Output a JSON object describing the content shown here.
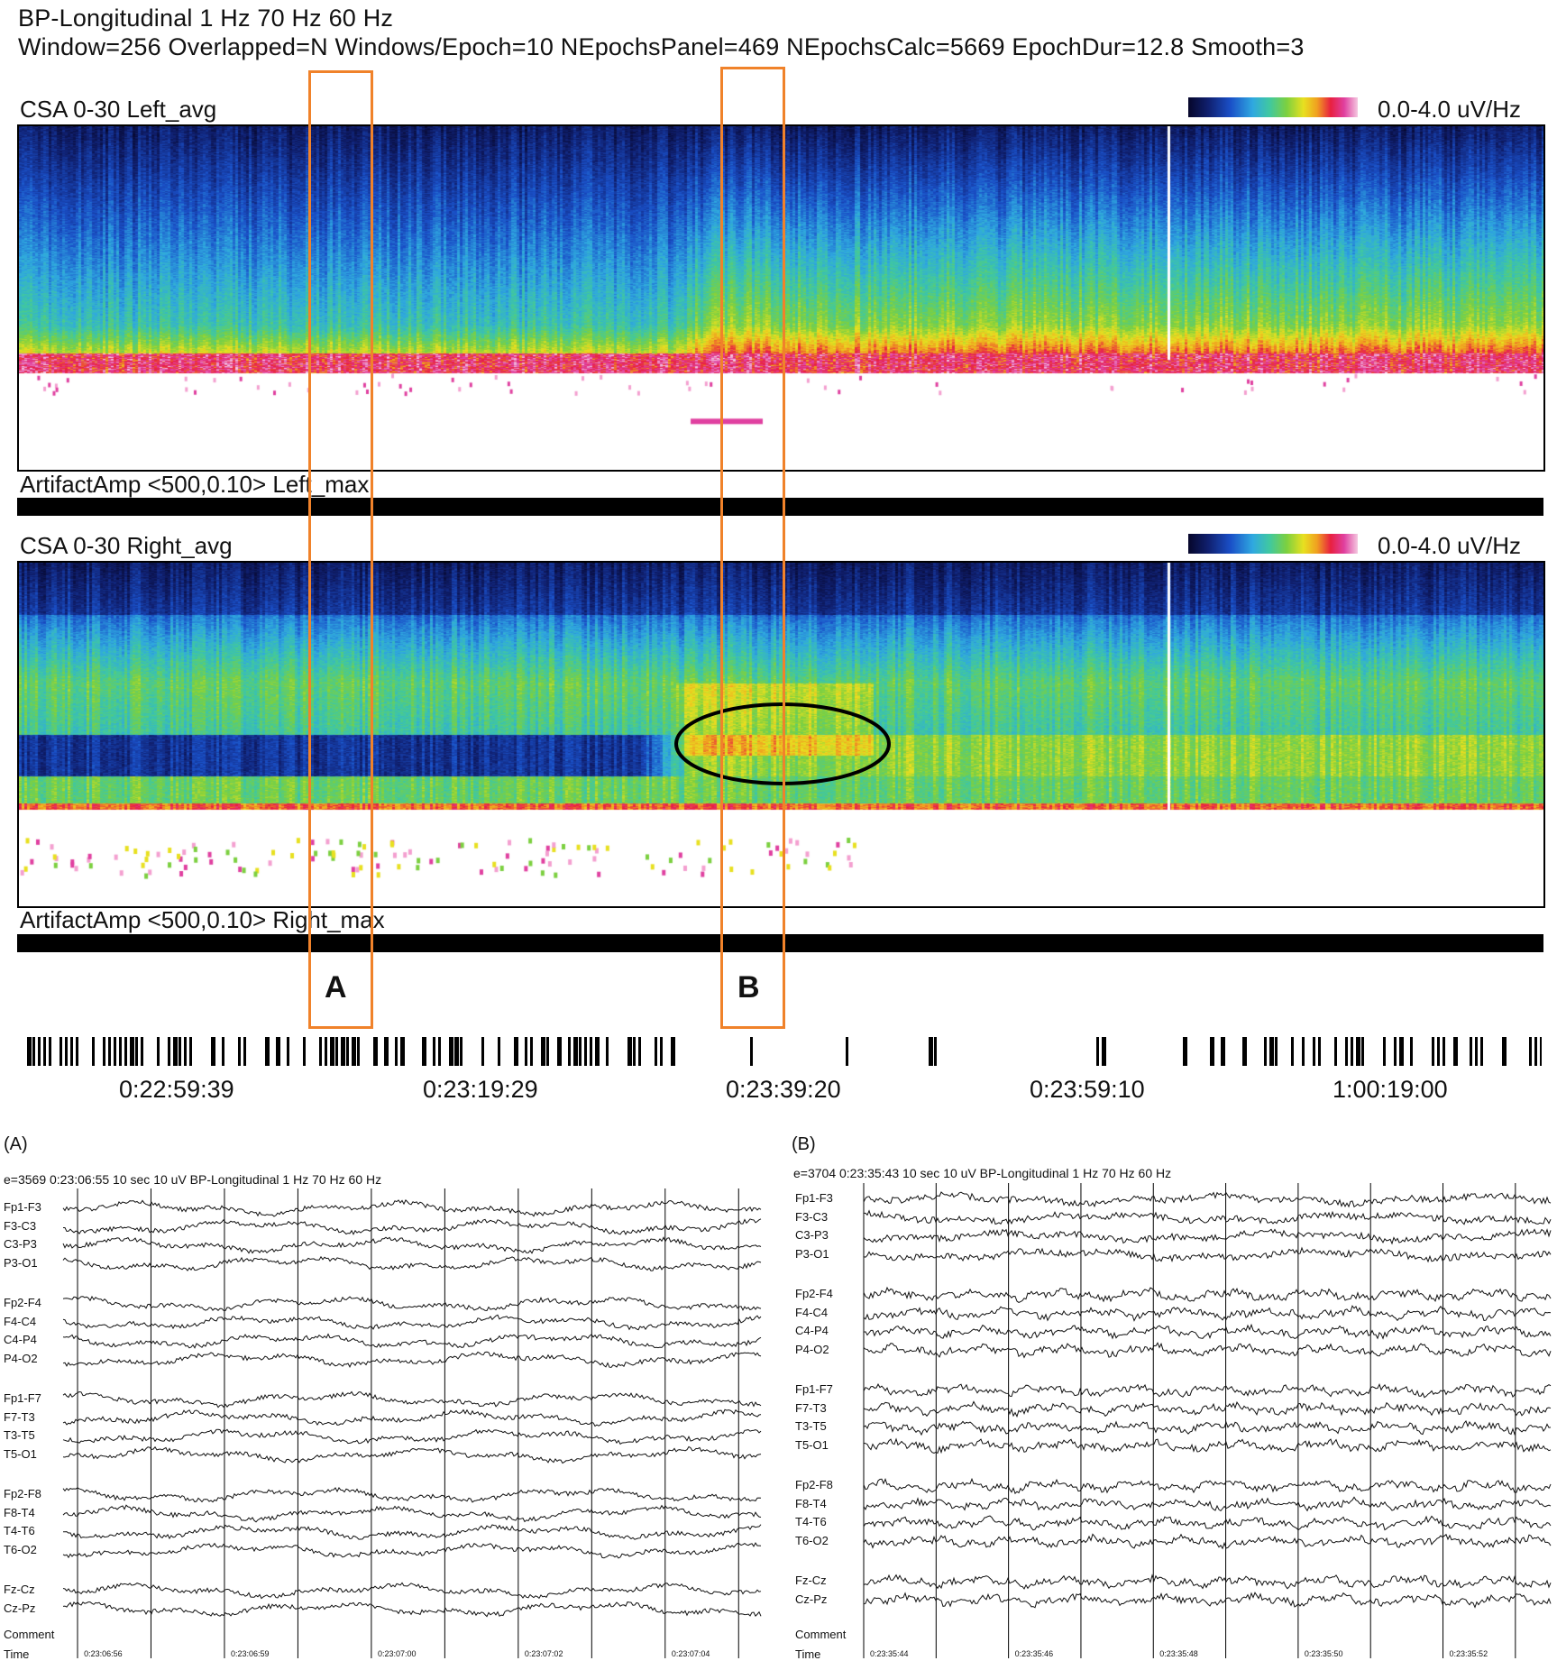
{
  "header": {
    "line1": "BP-Longitudinal  1 Hz  70 Hz  60 Hz",
    "line2": "Window=256 Overlapped=N Windows/Epoch=10 NEpochsPanel=469 NEpochsCalc=5669 EpochDur=12.8 Smooth=3"
  },
  "panels": {
    "left_title": "CSA 0-30 Left_avg",
    "right_title": "CSA 0-30 Right_avg",
    "scale_label": "0.0-4.0 uV/Hz",
    "artifact_left": "ArtifactAmp <500,0.10> Left_max",
    "artifact_right": "ArtifactAmp <500,0.10> Right_max"
  },
  "annotations": {
    "a": "A",
    "b": "B"
  },
  "timeline": [
    "0:22:59:39",
    "0:23:19:29",
    "0:23:39:20",
    "0:23:59:10",
    "1:00:19:00"
  ],
  "eeg": {
    "a": {
      "section": "(A)",
      "header": "e=3569  0:23:06:55  10 sec  10 uV  BP-Longitudinal  1 Hz  70 Hz  60 Hz",
      "times": [
        "0:23:06:56",
        "0:23:06:59",
        "0:23:07:00",
        "0:23:07:02",
        "0:23:07:04"
      ]
    },
    "b": {
      "section": "(B)",
      "header": "e=3704  0:23:35:43  10 sec  10 uV  BP-Longitudinal  1 Hz  70 Hz  60 Hz",
      "times": [
        "0:23:35:44",
        "0:23:35:46",
        "0:23:35:48",
        "0:23:35:50",
        "0:23:35:52"
      ]
    },
    "channels": [
      [
        "Fp1-F3",
        "F3-C3",
        "C3-P3",
        "P3-O1"
      ],
      [
        "Fp2-F4",
        "F4-C4",
        "C4-P4",
        "P4-O2"
      ],
      [
        "Fp1-F7",
        "F7-T3",
        "T3-T5",
        "T5-O1"
      ],
      [
        "Fp2-F8",
        "F8-T4",
        "T4-T6",
        "T6-O2"
      ],
      [
        "Fz-Cz",
        "Cz-Pz"
      ]
    ],
    "comment_label": "Comment",
    "time_label": "Time"
  },
  "chart_data": [
    {
      "type": "heatmap",
      "title": "CSA 0-30 Left_avg",
      "frequency_range_hz": [
        0,
        30
      ],
      "color_scale": "0.0-4.0 uV/Hz",
      "colormap": [
        "#06062a",
        "#102070",
        "#1a50c8",
        "#2fa8e0",
        "#7cd040",
        "#e8e020",
        "#e82040",
        "#e040a0",
        "#f4c8e0"
      ]
    },
    {
      "type": "heatmap",
      "title": "CSA 0-30 Right_avg",
      "frequency_range_hz": [
        0,
        30
      ],
      "color_scale": "0.0-4.0 uV/Hz"
    }
  ]
}
